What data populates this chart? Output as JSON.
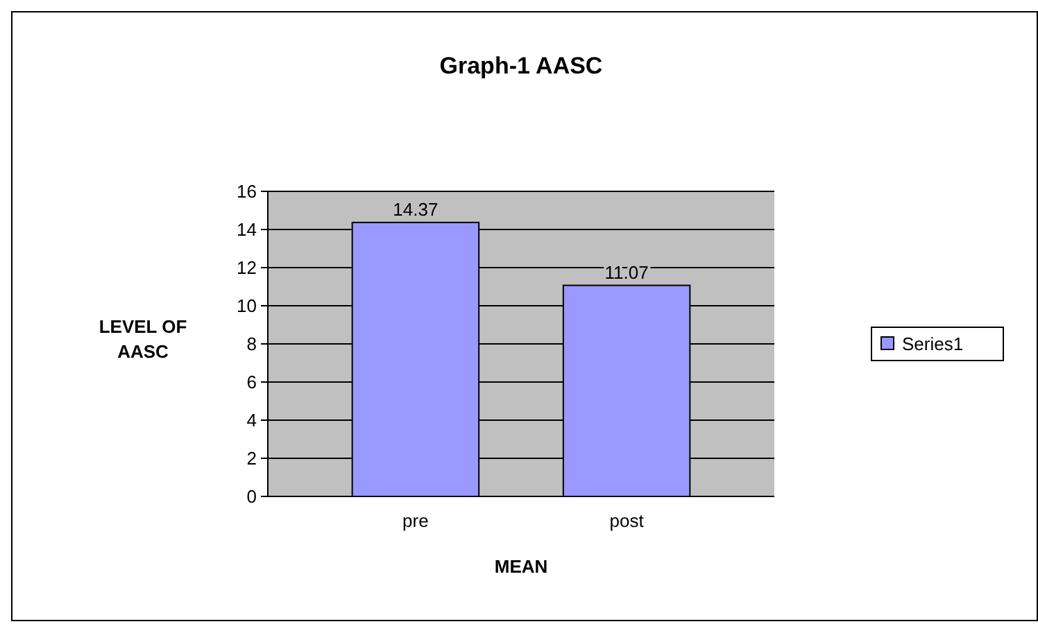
{
  "chart_data": {
    "type": "bar",
    "title": "Graph-1 AASC",
    "xlabel": "MEAN",
    "ylabel": "LEVEL OF AASC",
    "categories": [
      "pre",
      "post"
    ],
    "series": [
      {
        "name": "Series1",
        "color": "#9999ff",
        "values": [
          14.37,
          11.07
        ]
      }
    ],
    "ylim": [
      0,
      16
    ],
    "yticks": [
      0,
      2,
      4,
      6,
      8,
      10,
      12,
      14,
      16
    ],
    "grid": "y",
    "legend": "right",
    "data_labels": true
  }
}
